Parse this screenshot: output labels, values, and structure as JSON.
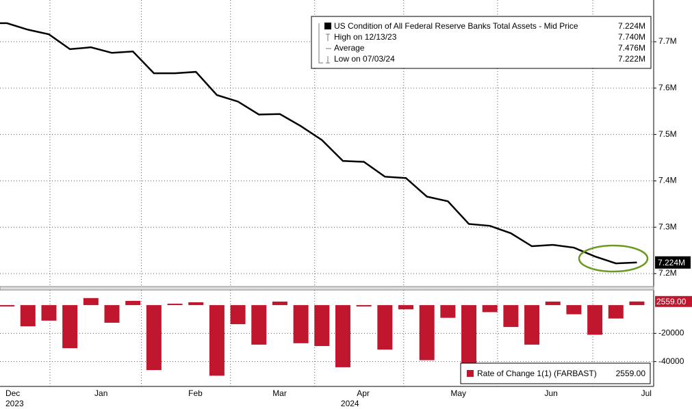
{
  "chart_data": [
    {
      "type": "line",
      "series": [
        {
          "name": "US Condition of All Federal Reserve Banks Total Assets - Mid Price",
          "color": "#000000",
          "values": [
            7.74,
            7.726,
            7.716,
            7.684,
            7.688,
            7.676,
            7.679,
            7.632,
            7.632,
            7.635,
            7.585,
            7.571,
            7.543,
            7.544,
            7.518,
            7.488,
            7.443,
            7.441,
            7.409,
            7.406,
            7.366,
            7.356,
            7.307,
            7.303,
            7.287,
            7.259,
            7.262,
            7.256,
            7.237,
            7.222,
            7.224
          ],
          "last_label": "7.224M"
        }
      ],
      "stats": [
        {
          "label": "High on 12/13/23",
          "value_label": "7.740M"
        },
        {
          "label": "Average",
          "value_label": "7.476M"
        },
        {
          "label": "Low on 07/03/24",
          "value_label": "7.222M"
        }
      ],
      "xlim": [
        -0.33,
        30.8
      ],
      "xticks": [
        {
          "value": -0.07,
          "label": "Dec"
        },
        {
          "value": 4.17,
          "label": "Jan"
        },
        {
          "value": 8.64,
          "label": "Feb"
        },
        {
          "value": 12.65,
          "label": "Mar"
        },
        {
          "value": 16.66,
          "label": "Apr"
        },
        {
          "value": 21.13,
          "label": "May"
        },
        {
          "value": 25.6,
          "label": "Jun"
        },
        {
          "value": 30.2,
          "label": "Jul"
        }
      ],
      "years": [
        {
          "value": -0.07,
          "label": "2023"
        },
        {
          "value": 15.9,
          "label": "2024"
        }
      ],
      "ylim": [
        7.172,
        7.79
      ],
      "yticks": [
        {
          "value": 7.2,
          "label": "7.2M"
        },
        {
          "value": 7.3,
          "label": "7.3M"
        },
        {
          "value": 7.4,
          "label": "7.4M"
        },
        {
          "value": 7.5,
          "label": "7.5M"
        },
        {
          "value": 7.6,
          "label": "7.6M"
        },
        {
          "value": 7.7,
          "label": "7.7M"
        }
      ],
      "grid": true
    },
    {
      "type": "bar",
      "series": [
        {
          "name": "Rate of Change 1(1) (FARBAST)",
          "color": "#c0172f",
          "values": [
            -1000,
            -15000,
            -11000,
            -30500,
            5000,
            -12500,
            3000,
            -46000,
            1000,
            2000,
            -50000,
            -13500,
            -28000,
            2500,
            -27000,
            -29000,
            -44000,
            -1000,
            -31500,
            -3000,
            -39000,
            -9000,
            -48000,
            -5000,
            -15500,
            -28000,
            2500,
            -6500,
            -21000,
            -9500,
            2559
          ],
          "last_label": "2559.00"
        }
      ],
      "xlim": [
        -0.33,
        30.8
      ],
      "ylim": [
        -57600,
        10700
      ],
      "yticks": [
        -20000,
        -40000
      ],
      "grid": true
    }
  ]
}
